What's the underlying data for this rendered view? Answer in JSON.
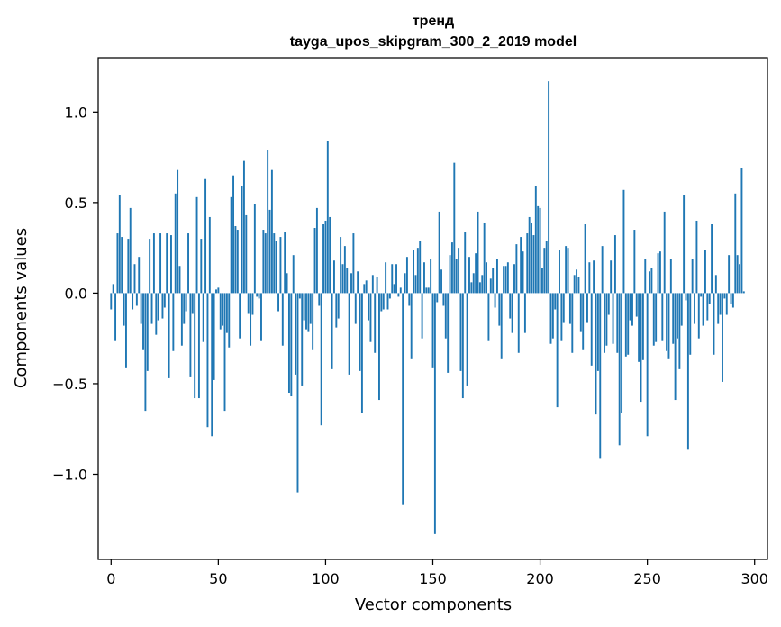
{
  "chart_data": {
    "type": "bar",
    "title": "тренд",
    "subtitle": "tayga_upos_skipgram_300_2_2019 model",
    "xlabel": "Vector components",
    "ylabel": "Components values",
    "xlim": [
      -6,
      306
    ],
    "ylim": [
      -1.47,
      1.3
    ],
    "xticks": [
      0,
      50,
      100,
      150,
      200,
      250,
      300
    ],
    "yticks": [
      -1.0,
      -0.5,
      0.0,
      0.5,
      1.0
    ],
    "xtick_labels": [
      "0",
      "50",
      "100",
      "150",
      "200",
      "250",
      "300"
    ],
    "ytick_labels": [
      "−1.0",
      "−0.5",
      "0.0",
      "0.5",
      "1.0"
    ],
    "grid": false,
    "bar_color": "#1f77b4",
    "series": [
      {
        "values": [
          -0.09,
          0.05,
          -0.26,
          0.33,
          0.54,
          0.31,
          -0.18,
          -0.41,
          0.3,
          0.47,
          -0.09,
          0.16,
          -0.07,
          0.2,
          -0.17,
          -0.31,
          -0.65,
          -0.43,
          0.3,
          -0.17,
          0.33,
          -0.23,
          -0.15,
          0.33,
          -0.14,
          -0.08,
          0.33,
          -0.47,
          0.32,
          -0.32,
          0.55,
          0.68,
          0.15,
          -0.29,
          -0.17,
          -0.1,
          0.33,
          -0.46,
          -0.11,
          -0.58,
          0.53,
          -0.58,
          0.3,
          -0.27,
          0.63,
          -0.74,
          0.42,
          -0.79,
          -0.48,
          0.02,
          0.03,
          -0.2,
          -0.18,
          -0.65,
          -0.22,
          -0.3,
          0.53,
          0.65,
          0.37,
          0.35,
          -0.25,
          0.59,
          0.73,
          0.43,
          -0.11,
          -0.29,
          -0.12,
          0.49,
          -0.02,
          -0.03,
          -0.26,
          0.35,
          0.33,
          0.79,
          0.46,
          0.68,
          0.33,
          0.29,
          -0.1,
          0.31,
          -0.29,
          0.34,
          0.11,
          -0.55,
          -0.57,
          0.21,
          -0.45,
          -1.1,
          -0.03,
          -0.51,
          -0.15,
          -0.2,
          -0.21,
          -0.17,
          -0.31,
          0.36,
          0.47,
          -0.07,
          -0.73,
          0.38,
          0.4,
          0.84,
          0.42,
          -0.42,
          0.18,
          -0.19,
          -0.14,
          0.31,
          0.16,
          0.26,
          0.14,
          -0.45,
          0.11,
          0.33,
          -0.17,
          0.12,
          -0.43,
          -0.66,
          0.05,
          0.07,
          -0.15,
          -0.27,
          0.1,
          -0.33,
          0.09,
          -0.59,
          -0.1,
          -0.09,
          0.17,
          -0.09,
          -0.03,
          0.16,
          0.05,
          0.16,
          -0.02,
          0.03,
          -1.17,
          0.11,
          0.2,
          -0.07,
          -0.36,
          0.24,
          0.1,
          0.25,
          0.29,
          -0.25,
          0.17,
          0.03,
          0.03,
          0.19,
          -0.41,
          -1.33,
          -0.05,
          0.45,
          0.13,
          -0.07,
          -0.25,
          -0.44,
          0.21,
          0.28,
          0.72,
          0.19,
          0.25,
          -0.43,
          -0.58,
          0.34,
          -0.51,
          0.2,
          0.06,
          0.11,
          0.22,
          0.45,
          0.06,
          0.1,
          0.39,
          0.17,
          -0.26,
          0.08,
          0.14,
          -0.08,
          0.19,
          -0.18,
          -0.36,
          0.15,
          0.15,
          0.17,
          -0.14,
          -0.22,
          0.16,
          0.27,
          -0.33,
          0.31,
          0.23,
          -0.22,
          0.33,
          0.42,
          0.39,
          0.32,
          0.59,
          0.48,
          0.47,
          0.14,
          0.25,
          0.29,
          1.17,
          -0.28,
          -0.25,
          -0.09,
          -0.63,
          0.24,
          -0.26,
          -0.16,
          0.26,
          0.25,
          -0.17,
          -0.33,
          0.1,
          0.13,
          0.09,
          -0.21,
          -0.31,
          0.38,
          -0.16,
          0.17,
          -0.4,
          0.18,
          -0.67,
          -0.43,
          -0.91,
          0.26,
          -0.33,
          -0.29,
          -0.12,
          0.18,
          -0.28,
          0.32,
          -0.33,
          -0.84,
          -0.66,
          0.57,
          -0.35,
          -0.34,
          -0.15,
          -0.18,
          0.35,
          -0.13,
          -0.38,
          -0.6,
          -0.37,
          0.19,
          -0.79,
          0.12,
          0.14,
          -0.29,
          -0.27,
          0.22,
          0.23,
          -0.26,
          0.45,
          -0.32,
          -0.36,
          0.19,
          -0.28,
          -0.59,
          -0.25,
          -0.42,
          -0.18,
          0.54,
          -0.04,
          -0.86,
          -0.34,
          0.19,
          -0.17,
          0.4,
          -0.25,
          -0.02,
          -0.18,
          0.24,
          -0.15,
          -0.06,
          0.38,
          -0.34,
          0.1,
          -0.17,
          -0.12,
          -0.49,
          -0.03,
          -0.12,
          0.21,
          -0.06,
          -0.08,
          0.55,
          0.21,
          0.16,
          0.69,
          0.01
        ]
      }
    ]
  }
}
